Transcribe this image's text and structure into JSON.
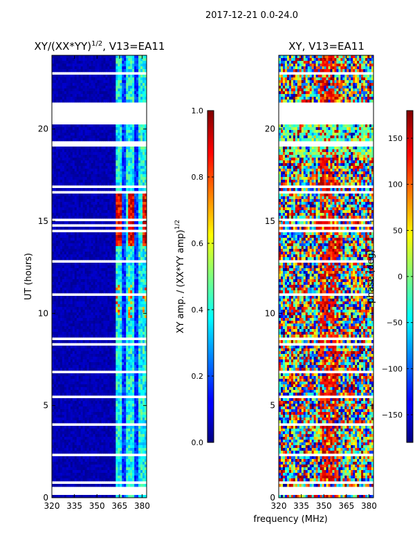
{
  "chart_data": {
    "type": "heatmap",
    "title": "2017-12-21 0.0-24.0",
    "xlabel": "frequency (MHz)",
    "panels": [
      {
        "title": "XY/(XX*YY)",
        "title_exponent": "1/2",
        "title_suffix": ", V13=EA11",
        "ylabel": "UT (hours)",
        "xlim": [
          320,
          383
        ],
        "ylim": [
          0,
          24
        ],
        "xticks": [
          "320",
          "335",
          "350",
          "365",
          "380"
        ],
        "xtick_values": [
          320,
          335,
          350,
          365,
          380
        ],
        "yticks": [
          "0",
          "5",
          "10",
          "15",
          "20"
        ],
        "ytick_values": [
          0,
          5,
          10,
          15,
          20
        ],
        "colorbar": {
          "label": "XY amp. / (XX*YY amp)",
          "label_exponent": "1/2",
          "range": [
            0.0,
            1.0
          ],
          "ticks": [
            "0.0",
            "0.2",
            "0.4",
            "0.6",
            "0.8",
            "1.0"
          ],
          "tick_values": [
            0.0,
            0.2,
            0.4,
            0.6,
            0.8,
            1.0
          ]
        }
      },
      {
        "title": "XY, V13=EA11",
        "ylabel": "",
        "xlim": [
          320,
          383
        ],
        "ylim": [
          0,
          24
        ],
        "xticks": [
          "320",
          "335",
          "350",
          "365",
          "380"
        ],
        "xtick_values": [
          320,
          335,
          350,
          365,
          380
        ],
        "yticks": [
          "0",
          "5",
          "10",
          "15",
          "20"
        ],
        "ytick_values": [
          0,
          5,
          10,
          15,
          20
        ],
        "colorbar": {
          "label": "phase (deg)",
          "range": [
            -180,
            180
          ],
          "ticks": [
            "−150",
            "−100",
            "−50",
            "0",
            "50",
            "100",
            "150"
          ],
          "tick_values": [
            -150,
            -100,
            -50,
            0,
            50,
            100,
            150
          ]
        }
      }
    ],
    "data_gaps_ut_hours": [
      [
        0.1,
        0.25
      ],
      [
        0.45,
        0.6
      ],
      [
        20.3,
        21.4
      ]
    ]
  }
}
